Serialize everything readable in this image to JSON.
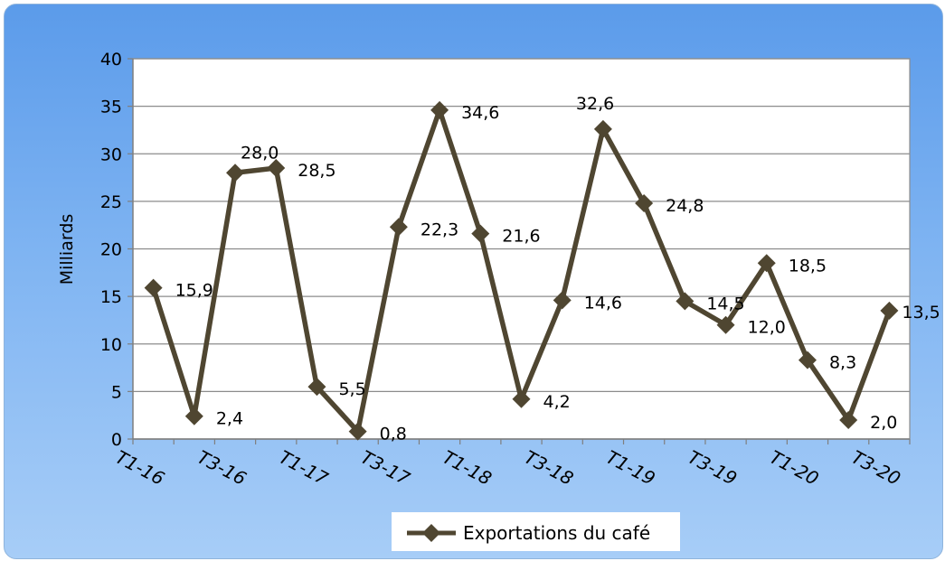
{
  "chart_data": {
    "type": "line",
    "title": "",
    "xlabel": "",
    "ylabel": "Milliards",
    "ylim": [
      0,
      40
    ],
    "yticks": [
      0,
      5,
      10,
      15,
      20,
      25,
      30,
      35,
      40
    ],
    "grid": true,
    "legend_position": "bottom",
    "x_tick_labels": [
      "T1-16",
      "T3-16",
      "T1-17",
      "T3-17",
      "T1-18",
      "T3-18",
      "T1-19",
      "T3-19",
      "T1-20",
      "T3-20"
    ],
    "series": [
      {
        "name": "Exportations du café",
        "color": "#4f4631",
        "values": [
          15.9,
          2.4,
          28.0,
          28.5,
          5.5,
          0.8,
          22.3,
          34.6,
          21.6,
          4.2,
          14.6,
          32.6,
          24.8,
          14.5,
          12.0,
          18.5,
          8.3,
          2.0,
          13.5
        ],
        "data_labels": [
          "15,9",
          "2,4",
          "28,0",
          "28,5",
          "5,5",
          "0,8",
          "22,3",
          "34,6",
          "21,6",
          "4,2",
          "14,6",
          "32,6",
          "24,8",
          "14,5",
          "12,0",
          "18,5",
          "8,3",
          "2,0",
          "13,5"
        ]
      }
    ]
  }
}
